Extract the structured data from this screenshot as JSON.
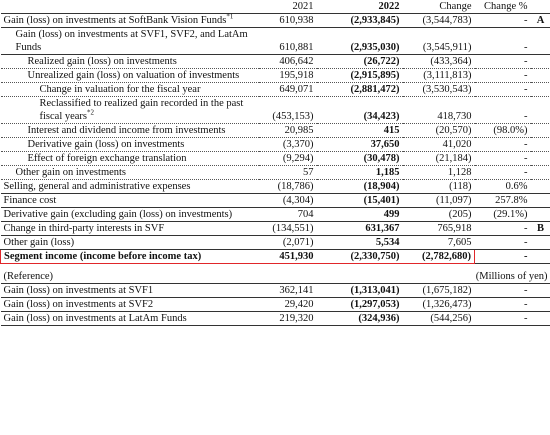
{
  "table": {
    "header": [
      "2021",
      "2022",
      "Change",
      "Change %"
    ],
    "rows": [
      {
        "label": "Gain (loss) on investments at SoftBank Vision Funds",
        "ref": "*1",
        "level": 0,
        "v2021": "610,938",
        "v2022": "(2,933,845)",
        "change": "(3,544,783)",
        "pct": "-",
        "note": "A"
      },
      {
        "label": "Gain (loss) on investments at SVF1, SVF2, and LatAm Funds",
        "level": 1,
        "v2021": "610,881",
        "v2022": "(2,935,030)",
        "change": "(3,545,911)",
        "pct": "-"
      },
      {
        "label": "Realized gain (loss) on investments",
        "level": 2,
        "v2021": "406,642",
        "v2022": "(26,722)",
        "change": "(433,364)",
        "pct": "-"
      },
      {
        "label": "Unrealized gain (loss) on valuation of investments",
        "level": 2,
        "v2021": "195,918",
        "v2022": "(2,915,895)",
        "change": "(3,111,813)",
        "pct": "-"
      },
      {
        "label": "Change in valuation for the fiscal year",
        "level": 3,
        "v2021": "649,071",
        "v2022": "(2,881,472)",
        "change": "(3,530,543)",
        "pct": "-"
      },
      {
        "label": "Reclassified to realized gain recorded in the past fiscal years",
        "ref": "*2",
        "level": 3,
        "v2021": "(453,153)",
        "v2022": "(34,423)",
        "change": "418,730",
        "pct": "-"
      },
      {
        "label": "Interest and dividend income from investments",
        "level": 2,
        "v2021": "20,985",
        "v2022": "415",
        "change": "(20,570)",
        "pct": "(98.0%)"
      },
      {
        "label": "Derivative gain (loss) on investments",
        "level": 2,
        "v2021": "(3,370)",
        "v2022": "37,650",
        "change": "41,020",
        "pct": "-"
      },
      {
        "label": "Effect of foreign exchange translation",
        "level": 2,
        "v2021": "(9,294)",
        "v2022": "(30,478)",
        "change": "(21,184)",
        "pct": "-"
      },
      {
        "label": "Other gain on investments",
        "level": 1,
        "v2021": "57",
        "v2022": "1,185",
        "change": "1,128",
        "pct": "-"
      },
      {
        "label": "Selling, general and administrative expenses",
        "level": 0,
        "v2021": "(18,786)",
        "v2022": "(18,904)",
        "change": "(118)",
        "pct": "0.6%"
      },
      {
        "label": "Finance cost",
        "level": 0,
        "v2021": "(4,304)",
        "v2022": "(15,401)",
        "change": "(11,097)",
        "pct": "257.8%"
      },
      {
        "label": "Derivative gain (excluding gain (loss) on investments)",
        "level": 0,
        "v2021": "704",
        "v2022": "499",
        "change": "(205)",
        "pct": "(29.1%)"
      },
      {
        "label": "Change in third-party interests in SVF",
        "level": 0,
        "v2021": "(134,551)",
        "v2022": "631,367",
        "change": "765,918",
        "pct": "-",
        "note": "B"
      },
      {
        "label": "Other gain (loss)",
        "level": 0,
        "v2021": "(2,071)",
        "v2022": "5,534",
        "change": "7,605",
        "pct": "-"
      },
      {
        "label": "Segment income (income before income tax)",
        "level": 0,
        "bold": true,
        "v2021": "451,930",
        "v2022": "(2,330,750)",
        "change": "(2,782,680)",
        "pct": "-"
      }
    ],
    "reference": {
      "title": "(Reference)",
      "unit": "(Millions of yen)",
      "rows": [
        {
          "label": "Gain (loss) on investments at SVF1",
          "v2021": "362,141",
          "v2022": "(1,313,041)",
          "change": "(1,675,182)",
          "pct": "-"
        },
        {
          "label": "Gain (loss) on investments at SVF2",
          "v2021": "29,420",
          "v2022": "(1,297,053)",
          "change": "(1,326,473)",
          "pct": "-"
        },
        {
          "label": "Gain (loss) on investments at LatAm Funds",
          "v2021": "219,320",
          "v2022": "(324,936)",
          "change": "(544,256)",
          "pct": "-"
        }
      ]
    }
  }
}
